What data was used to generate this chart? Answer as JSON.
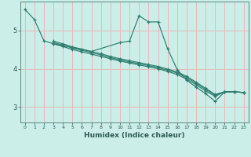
{
  "xlabel": "Humidex (Indice chaleur)",
  "xlim": [
    -0.5,
    23.5
  ],
  "ylim": [
    2.6,
    5.75
  ],
  "yticks": [
    3,
    4,
    5
  ],
  "xticks": [
    0,
    1,
    2,
    3,
    4,
    5,
    6,
    7,
    8,
    9,
    10,
    11,
    12,
    13,
    14,
    15,
    16,
    17,
    18,
    19,
    20,
    21,
    22,
    23
  ],
  "bg_color": "#cceee8",
  "grid_color": "#e8b8b8",
  "line_color": "#2e7d6e",
  "spine_color": "#5a8a80",
  "tick_color": "#2e5a55",
  "lines": [
    {
      "x": [
        0,
        1,
        2,
        3,
        4,
        5,
        6,
        7,
        10,
        11,
        12,
        13,
        14,
        15,
        16,
        17,
        18,
        19,
        20,
        21,
        22,
        23
      ],
      "y": [
        5.55,
        5.28,
        4.73,
        4.65,
        4.6,
        4.55,
        4.5,
        4.45,
        4.68,
        4.72,
        5.38,
        5.22,
        5.22,
        4.52,
        3.98,
        3.7,
        3.52,
        3.35,
        3.15,
        3.4,
        3.4,
        3.38
      ]
    },
    {
      "x": [
        3,
        4,
        5,
        6,
        7,
        8,
        9,
        10,
        11,
        12,
        13,
        14,
        15,
        16,
        17,
        18,
        19,
        20,
        21,
        22,
        23
      ],
      "y": [
        4.65,
        4.58,
        4.5,
        4.44,
        4.38,
        4.32,
        4.26,
        4.2,
        4.15,
        4.1,
        4.05,
        4.0,
        3.93,
        3.85,
        3.73,
        3.58,
        3.42,
        3.28,
        3.4,
        3.4,
        3.38
      ]
    },
    {
      "x": [
        3,
        4,
        5,
        6,
        7,
        8,
        9,
        10,
        11,
        12,
        13,
        14,
        15,
        16,
        17,
        18,
        19,
        20,
        21,
        22,
        23
      ],
      "y": [
        4.68,
        4.62,
        4.54,
        4.48,
        4.42,
        4.36,
        4.29,
        4.23,
        4.18,
        4.13,
        4.08,
        4.03,
        3.96,
        3.89,
        3.77,
        3.62,
        3.46,
        3.31,
        3.4,
        3.4,
        3.38
      ]
    },
    {
      "x": [
        3,
        4,
        5,
        6,
        7,
        8,
        9,
        10,
        11,
        12,
        13,
        14,
        15,
        16,
        17,
        18,
        19,
        20,
        21,
        22,
        23
      ],
      "y": [
        4.72,
        4.65,
        4.57,
        4.51,
        4.45,
        4.39,
        4.32,
        4.26,
        4.21,
        4.16,
        4.11,
        4.06,
        3.99,
        3.92,
        3.8,
        3.65,
        3.49,
        3.33,
        3.4,
        3.4,
        3.38
      ]
    }
  ]
}
